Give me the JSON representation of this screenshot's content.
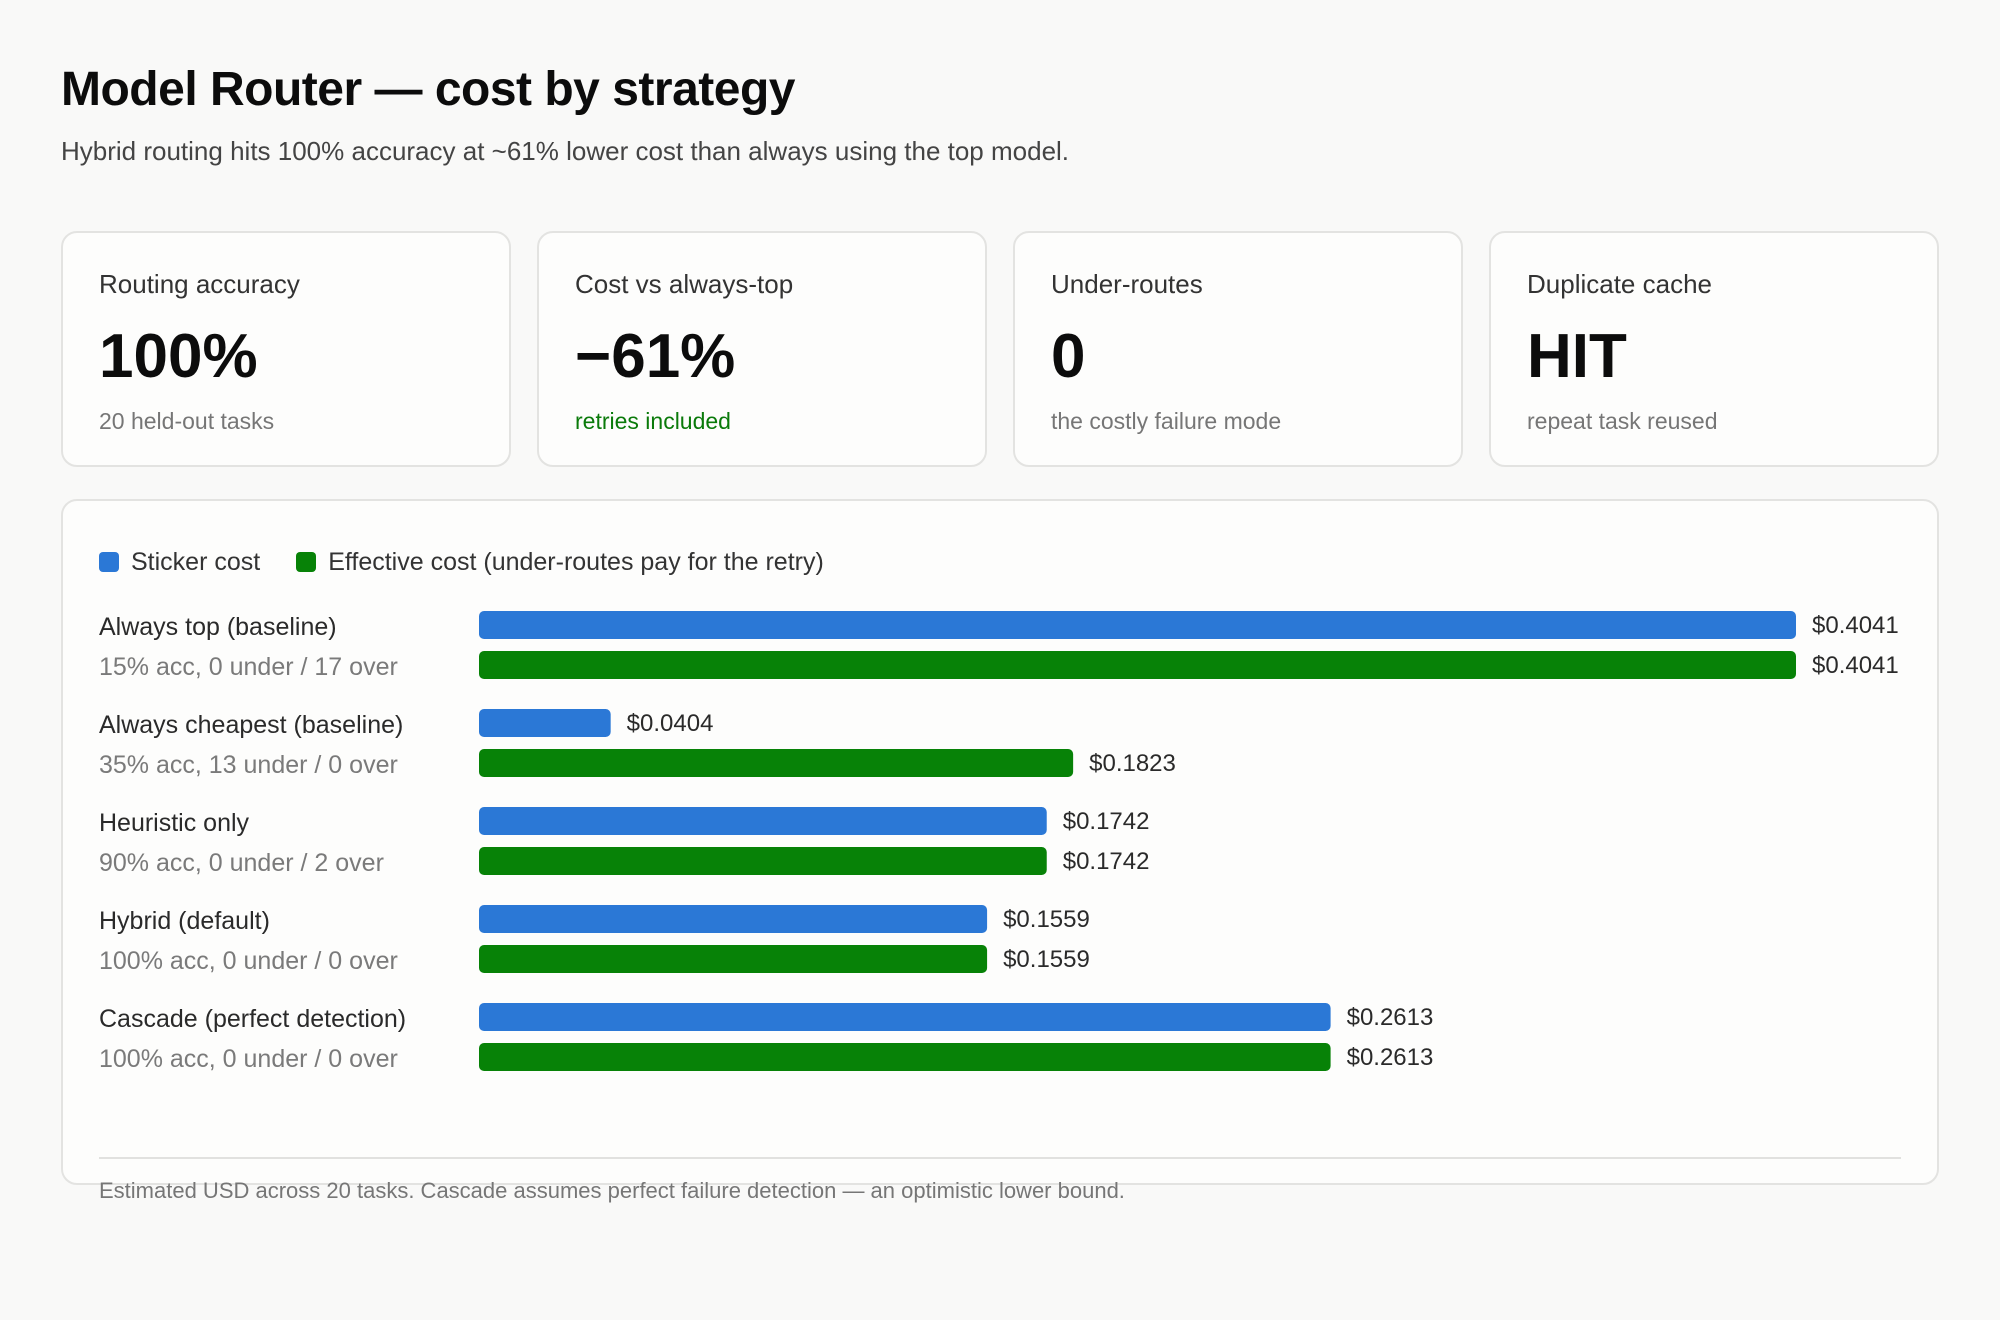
{
  "header": {
    "title": "Model Router — cost by strategy",
    "subtitle": "Hybrid routing hits 100% accuracy at ~61% lower cost than always using the top model."
  },
  "cards": [
    {
      "label": "Routing accuracy",
      "value": "100%",
      "note": "20 held-out tasks"
    },
    {
      "label": "Cost vs always-top",
      "value": "−61%",
      "note": "retries included"
    },
    {
      "label": "Under-routes",
      "value": "0",
      "note": "the costly failure mode"
    },
    {
      "label": "Duplicate cache",
      "value": "HIT",
      "note": "repeat task reused"
    }
  ],
  "footnote": "Estimated USD across 20 tasks. Cascade assumes perfect failure detection — an optimistic lower bound.",
  "colors": {
    "sticker": "#2b78d6",
    "effective": "#078207",
    "positive_note": "#0a7a0a"
  },
  "chart_data": {
    "type": "bar",
    "orientation": "horizontal",
    "grid": false,
    "legend_placement": "top-left",
    "categories": [
      "Always top (baseline)",
      "Always cheapest (baseline)",
      "Heuristic only",
      "Hybrid (default)",
      "Cascade (perfect detection)"
    ],
    "category_notes": [
      "15% acc, 0 under / 17 over",
      "35% acc, 13 under / 0 over",
      "90% acc, 0 under / 2 over",
      "100% acc, 0 under / 0 over",
      "100% acc, 0 under / 0 over"
    ],
    "series": [
      {
        "name": "Sticker cost",
        "values": [
          0.4041,
          0.0404,
          0.1742,
          0.1559,
          0.2613
        ]
      },
      {
        "name": "Effective cost (under-routes pay for the retry)",
        "values": [
          0.4041,
          0.1823,
          0.1742,
          0.1559,
          0.2613
        ]
      }
    ],
    "data_labels": [
      [
        "$0.4041",
        "$0.0404",
        "$0.1742",
        "$0.1559",
        "$0.2613"
      ],
      [
        "$0.4041",
        "$0.1823",
        "$0.1742",
        "$0.1559",
        "$0.2613"
      ]
    ],
    "xlim": [
      0,
      0.4041
    ]
  }
}
